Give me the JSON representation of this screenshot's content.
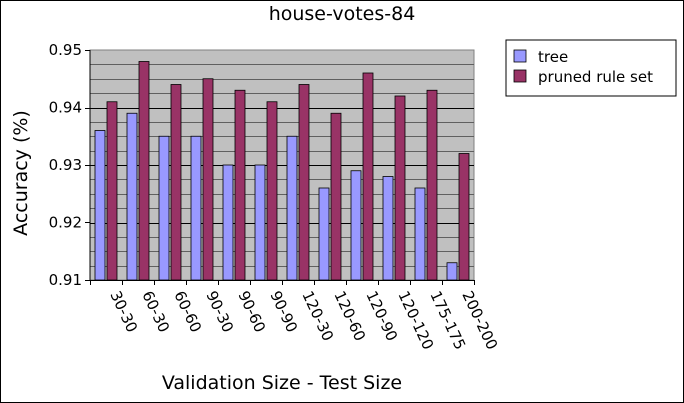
{
  "chart_data": {
    "type": "bar",
    "title": "house-votes-84",
    "xlabel": "Validation Size - Test Size",
    "ylabel": "Accuracy (%)",
    "ylim": [
      0.91,
      0.95
    ],
    "yticks": [
      0.91,
      0.92,
      0.93,
      0.94,
      0.95
    ],
    "ytick_labels": [
      "0.91",
      "0.92",
      "0.93",
      "0.94",
      "0.95"
    ],
    "grid": true,
    "legend_position": "top-right",
    "categories": [
      "30-30",
      "60-30",
      "60-60",
      "90-30",
      "90-60",
      "90-90",
      "120-30",
      "120-60",
      "120-90",
      "120-120",
      "175-175",
      "200-200"
    ],
    "series": [
      {
        "name": "tree",
        "color": "#9999ff",
        "values": [
          0.936,
          0.939,
          0.935,
          0.935,
          0.93,
          0.93,
          0.935,
          0.926,
          0.929,
          0.928,
          0.926,
          0.913
        ]
      },
      {
        "name": "pruned rule set",
        "color": "#993366",
        "values": [
          0.941,
          0.948,
          0.944,
          0.945,
          0.943,
          0.941,
          0.944,
          0.939,
          0.946,
          0.942,
          0.943,
          0.932
        ]
      }
    ],
    "plot_background": "#c0c0c0"
  }
}
